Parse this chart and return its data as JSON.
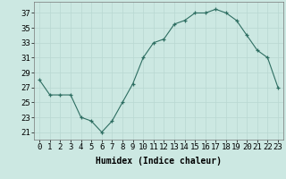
{
  "x": [
    0,
    1,
    2,
    3,
    4,
    5,
    6,
    7,
    8,
    9,
    10,
    11,
    12,
    13,
    14,
    15,
    16,
    17,
    18,
    19,
    20,
    21,
    22,
    23
  ],
  "y": [
    28,
    26,
    26,
    26,
    23,
    22.5,
    21,
    22.5,
    25,
    27.5,
    31,
    33,
    33.5,
    35.5,
    36,
    37,
    37,
    37.5,
    37,
    36,
    34,
    32,
    31,
    27
  ],
  "line_color": "#2e6e62",
  "marker": "+",
  "marker_color": "#2e6e62",
  "bg_color": "#cce8e2",
  "grid_color": "#b8d8d2",
  "xlabel": "Humidex (Indice chaleur)",
  "ylabel_ticks": [
    21,
    23,
    25,
    27,
    29,
    31,
    33,
    35,
    37
  ],
  "xlim": [
    -0.5,
    23.5
  ],
  "ylim": [
    20.0,
    38.5
  ],
  "xlabel_fontsize": 7,
  "tick_fontsize": 6.5
}
